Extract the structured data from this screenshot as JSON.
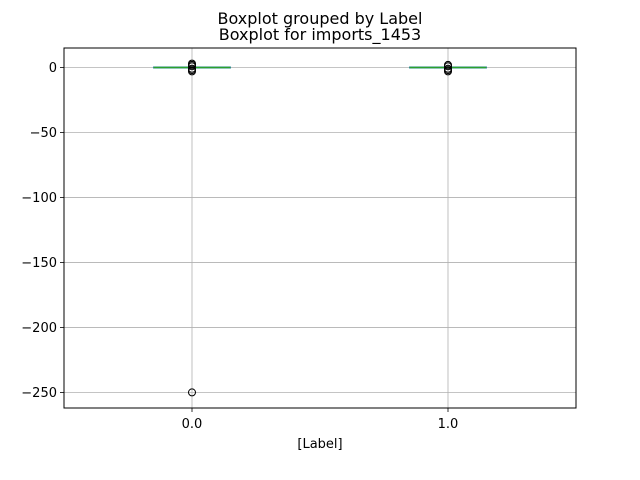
{
  "chart_data": {
    "type": "boxplot",
    "suptitle": "Boxplot grouped by Label",
    "title": "Boxplot for imports_1453",
    "xlabel": "[Label]",
    "ylabel": "",
    "categories": [
      "0.0",
      "1.0"
    ],
    "ylim": [
      -262,
      15
    ],
    "yticks": [
      0,
      -50,
      -100,
      -150,
      -200,
      -250
    ],
    "yticklabels": [
      "0",
      "−50",
      "−100",
      "−150",
      "−200",
      "−250"
    ],
    "grid": true,
    "boxes": [
      {
        "category": "0.0",
        "q1": 0,
        "median": 0,
        "q3": 0,
        "whisker_low": 0,
        "whisker_high": 0,
        "outliers": [
          1,
          2,
          3,
          -1,
          -2,
          -3,
          -250
        ]
      },
      {
        "category": "1.0",
        "q1": 0,
        "median": 0,
        "q3": 0,
        "whisker_low": 0,
        "whisker_high": 0,
        "outliers": [
          1,
          2,
          -1,
          -2,
          -3
        ]
      }
    ]
  },
  "colors": {
    "box": "#1f77b4",
    "median": "#2ca02c",
    "grid": "#b0b0b0",
    "outlier_edge": "#000000"
  }
}
